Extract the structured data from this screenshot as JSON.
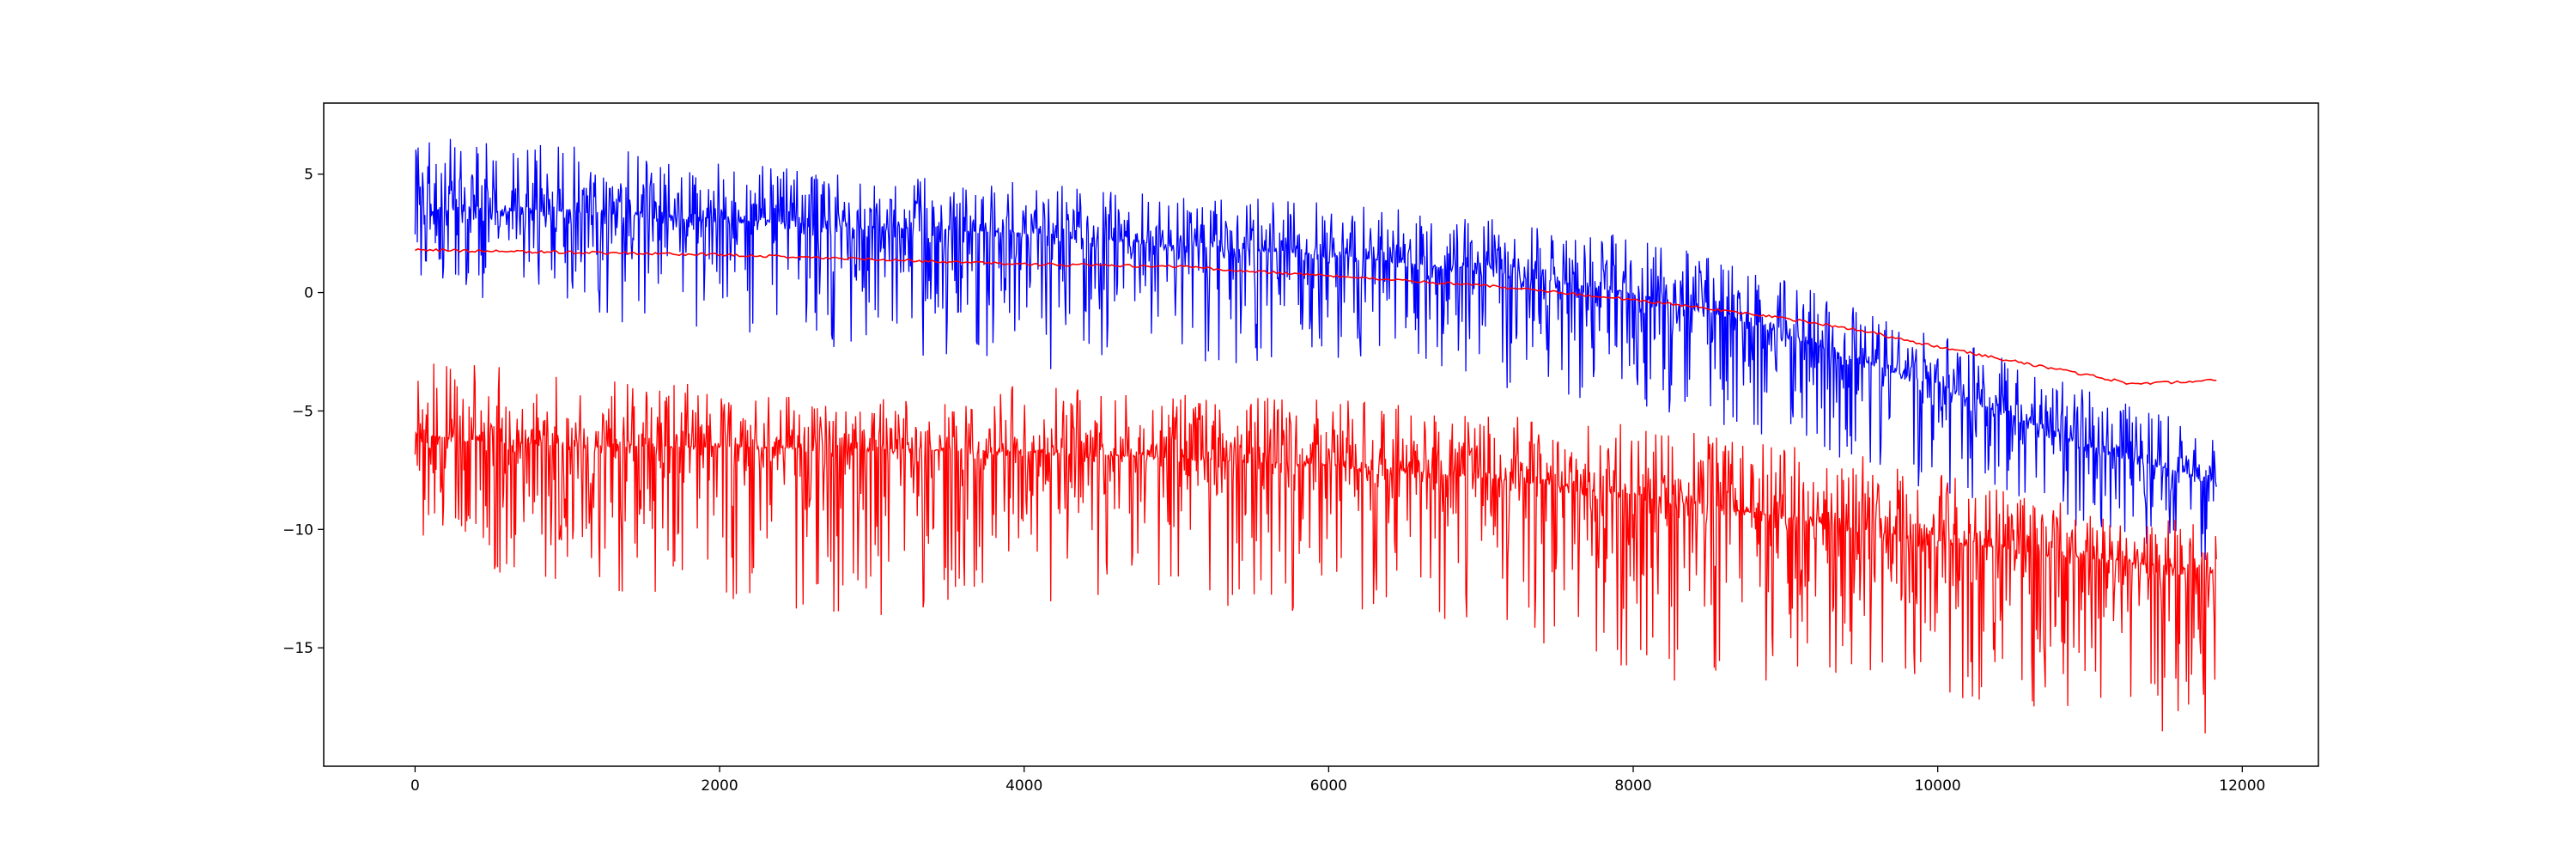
{
  "chart_data": {
    "type": "line",
    "title": "",
    "xlabel": "",
    "ylabel": "",
    "xlim": [
      -600,
      12500
    ],
    "ylim": [
      -20,
      8
    ],
    "x_ticks": [
      0,
      2000,
      4000,
      6000,
      8000,
      10000,
      12000
    ],
    "y_ticks": [
      5,
      0,
      -5,
      -10,
      -15
    ],
    "grid": false,
    "legend": "none",
    "series": [
      {
        "color": "#0000ff",
        "style": "noisy",
        "x": [
          0,
          1000,
          2000,
          3000,
          4000,
          5000,
          6000,
          7000,
          8000,
          9000,
          10000,
          11000,
          11830
        ],
        "mean": [
          3.5,
          3.4,
          3.1,
          2.8,
          2.5,
          2.0,
          1.6,
          0.9,
          0.0,
          -1.7,
          -4.0,
          -6.5,
          -8.0
        ],
        "upper": [
          6.8,
          6.2,
          5.7,
          5.0,
          4.7,
          4.2,
          3.8,
          3.2,
          2.4,
          0.7,
          -1.5,
          -4.0,
          -5.8
        ],
        "lower": [
          0.0,
          -1.0,
          -1.8,
          -2.5,
          -3.3,
          -3.0,
          -3.2,
          -4.2,
          -5.3,
          -6.5,
          -8.5,
          -10.0,
          -11.5
        ]
      },
      {
        "color": "#ff0000",
        "style": "noisy",
        "x": [
          0,
          1000,
          2000,
          3000,
          4000,
          5000,
          6000,
          7000,
          8000,
          9000,
          10000,
          11000,
          11830
        ],
        "mean": [
          -6.0,
          -6.5,
          -6.5,
          -6.6,
          -6.7,
          -7.0,
          -7.3,
          -7.8,
          -8.5,
          -9.5,
          -10.5,
          -11.2,
          -11.8
        ],
        "upper": [
          -2.9,
          -3.3,
          -4.0,
          -4.5,
          -3.8,
          -4.3,
          -4.5,
          -5.0,
          -5.5,
          -6.3,
          -7.5,
          -9.0,
          -9.8
        ],
        "lower": [
          -11.0,
          -12.5,
          -13.0,
          -13.7,
          -13.0,
          -13.3,
          -13.5,
          -14.0,
          -16.5,
          -16.5,
          -17.0,
          -18.8,
          -18.8
        ]
      },
      {
        "color": "#ff0000",
        "style": "smooth",
        "x": [
          0,
          1000,
          2000,
          3000,
          4000,
          5000,
          6000,
          7000,
          7500,
          8000,
          8500,
          9000,
          9500,
          10000,
          10500,
          11000,
          11300,
          11500,
          11830
        ],
        "y": [
          1.8,
          1.7,
          1.6,
          1.4,
          1.2,
          1.1,
          0.7,
          0.3,
          0.0,
          -0.3,
          -0.7,
          -1.1,
          -1.6,
          -2.3,
          -2.9,
          -3.5,
          -3.9,
          -3.8,
          -3.7
        ]
      }
    ]
  }
}
